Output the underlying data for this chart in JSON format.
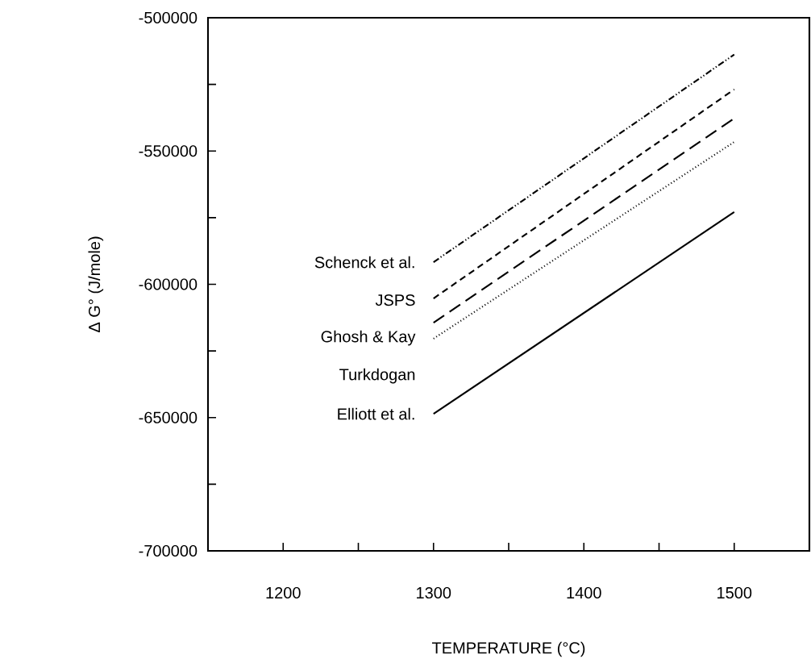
{
  "chart_data": {
    "type": "line",
    "xlabel": "TEMPERATURE (°C)",
    "ylabel": "Δ G° (J/mole)",
    "xlim": [
      1150,
      1550
    ],
    "ylim": [
      -700000,
      -500000
    ],
    "xticks": [
      1200,
      {
        "value": 1250,
        "label": null
      },
      1300,
      {
        "value": 1350,
        "label": null
      },
      1400,
      {
        "value": 1450,
        "label": null
      },
      1500
    ],
    "yticks": [
      -700000,
      {
        "value": -675000,
        "label": null
      },
      -650000,
      {
        "value": -625000,
        "label": null
      },
      -600000,
      {
        "value": -575000,
        "label": null
      },
      -550000,
      {
        "value": -525000,
        "label": null
      },
      -500000
    ],
    "x": [
      1300,
      1500
    ],
    "series": [
      {
        "name": "Schenck et al.",
        "color": "#000000",
        "line_style": "dashdotdotted",
        "values": [
          -591700,
          -513800
        ]
      },
      {
        "name": "JSPS",
        "color": "#000000",
        "line_style": "dashed",
        "values": [
          -605300,
          -526900
        ]
      },
      {
        "name": "Ghosh & Kay",
        "color": "#000000",
        "line_style": "longdashed",
        "values": [
          -614400,
          -537800
        ]
      },
      {
        "name": "Turkdogan",
        "color": "#000000",
        "line_style": "dotted",
        "values": [
          -620400,
          -546600
        ]
      },
      {
        "name": "Elliott et al.",
        "color": "#000000",
        "line_style": "solid",
        "values": [
          -648600,
          -572900
        ]
      }
    ]
  }
}
